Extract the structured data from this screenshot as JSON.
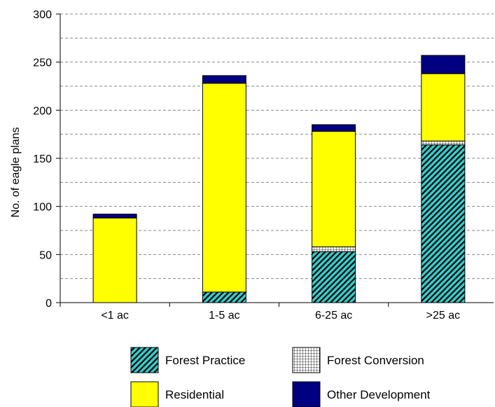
{
  "chart_data": {
    "type": "bar",
    "stacked": true,
    "title": "",
    "xlabel": "",
    "ylabel": "No. of eagle plans",
    "ylim": [
      0,
      300
    ],
    "yticks": [
      0,
      50,
      100,
      150,
      200,
      250,
      300
    ],
    "minor_grid_step": 25,
    "grid": true,
    "legend_position": "bottom",
    "categories": [
      "<1 ac",
      "1-5 ac",
      "6-25 ac",
      ">25 ac"
    ],
    "series": [
      {
        "name": "Forest Practice",
        "values": [
          0,
          11,
          53,
          164
        ],
        "color": "#33cccc",
        "pattern": "diagonal-hatch"
      },
      {
        "name": "Forest Conversion",
        "values": [
          0,
          0,
          5,
          4
        ],
        "color": "#ffffff",
        "pattern": "grid"
      },
      {
        "name": "Residential",
        "values": [
          88,
          217,
          120,
          70
        ],
        "color": "#ffff00",
        "pattern": "solid"
      },
      {
        "name": "Other Development",
        "values": [
          4,
          8,
          7,
          19
        ],
        "color": "#000080",
        "pattern": "solid"
      }
    ]
  }
}
